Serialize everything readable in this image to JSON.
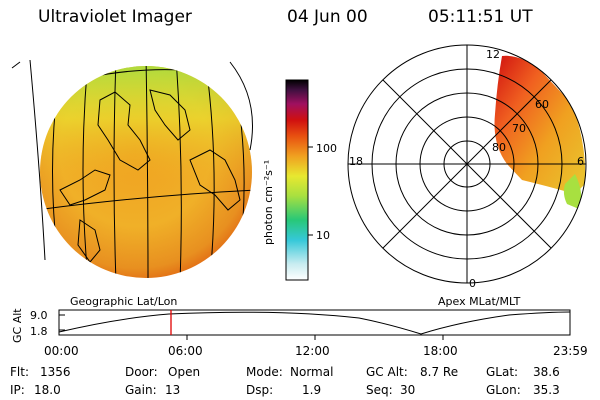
{
  "header": {
    "instrument": "Ultraviolet Imager",
    "date": "04 Jun 00",
    "time": "05:11:51 UT"
  },
  "geo_panel": {
    "label": "Geographic Lat/Lon"
  },
  "polar_panel": {
    "label": "Apex MLat/MLT",
    "mlt_labels": [
      "12",
      "18",
      "6",
      "0"
    ],
    "mlat_labels": [
      "60",
      "70",
      "80"
    ]
  },
  "colorbar": {
    "unit": "photon cm⁻²s⁻¹",
    "ticks": [
      "100",
      "10"
    ]
  },
  "altitude": {
    "axis_label": "GC Alt",
    "y_ticks": [
      "9.0",
      "1.8"
    ],
    "x_ticks": [
      "00:00",
      "06:00",
      "12:00",
      "18:00",
      "23:59"
    ]
  },
  "footer": [
    {
      "key": "Flt:",
      "val": "1356"
    },
    {
      "key": "IP:",
      "val": "18.0"
    },
    {
      "key": "Door:",
      "val": "Open"
    },
    {
      "key": "Gain:",
      "val": "13"
    },
    {
      "key": "Mode:",
      "val": "Normal"
    },
    {
      "key": "Dsp:",
      "val": "1.9"
    },
    {
      "key": "GC Alt:",
      "val": "8.7 Re"
    },
    {
      "key": "Seq:",
      "val": "30"
    },
    {
      "key": "GLat:",
      "val": "38.6"
    },
    {
      "key": "GLon:",
      "val": "35.3"
    }
  ],
  "colors": {
    "scale": [
      "#ffffff",
      "#c8ecf0",
      "#35c8d8",
      "#28c878",
      "#a8e040",
      "#e8e830",
      "#f0a020",
      "#e85010",
      "#d01010",
      "#a01060",
      "#401040",
      "#000000"
    ],
    "marker": "#e00000"
  }
}
